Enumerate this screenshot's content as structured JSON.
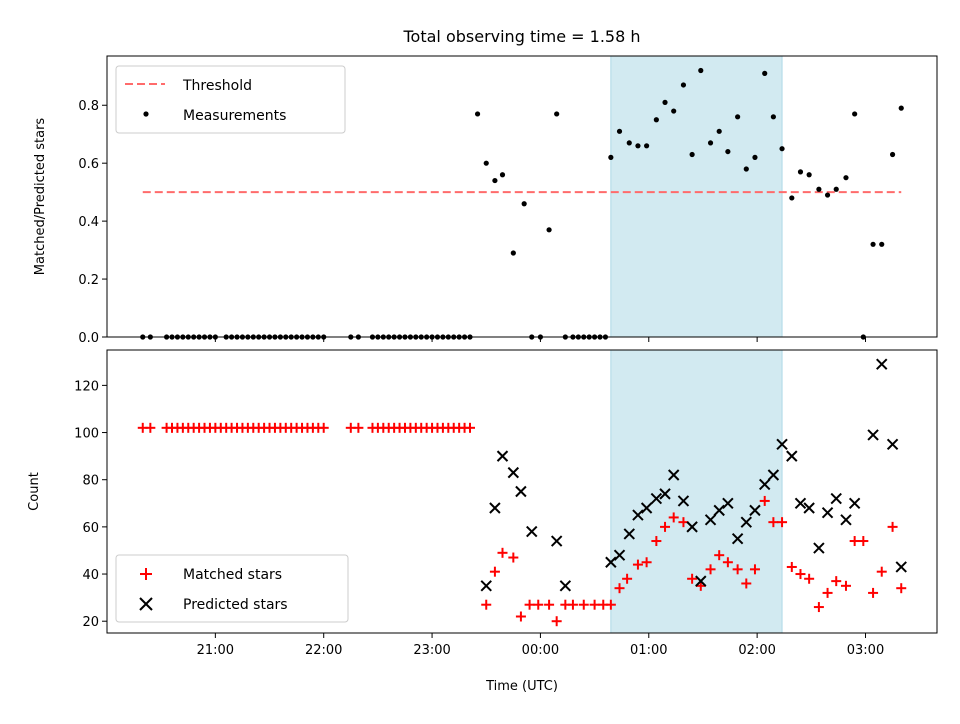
{
  "chart_data": [
    {
      "type": "scatter",
      "title": "Total observing time = 1.58 h",
      "xlabel": "",
      "ylabel": "Matched/Predicted stars",
      "x_unit": "hours UTC (values above 24 are after midnight of the next day)",
      "xlim": [
        20.0,
        27.66
      ],
      "ylim": [
        0,
        0.97
      ],
      "yticks": [
        "0.0",
        "0.2",
        "0.4",
        "0.6",
        "0.8"
      ],
      "highlight": {
        "x0": 24.65,
        "x1": 26.23,
        "color": "#add8e6"
      },
      "threshold": {
        "name": "Threshold",
        "y": 0.5,
        "x0": 20.33,
        "x1": 27.33,
        "color": "#ff6b6b"
      },
      "legend": {
        "position": "upper-left",
        "entries": [
          "Threshold",
          "Measurements"
        ]
      },
      "series": [
        {
          "name": "Measurements",
          "x": [
            20.33,
            20.4,
            20.55,
            20.6,
            20.65,
            20.7,
            20.75,
            20.8,
            20.85,
            20.9,
            20.95,
            21.0,
            21.1,
            21.15,
            21.2,
            21.25,
            21.3,
            21.35,
            21.4,
            21.45,
            21.5,
            21.55,
            21.6,
            21.65,
            21.7,
            21.75,
            21.8,
            21.85,
            21.9,
            21.95,
            22.0,
            22.25,
            22.32,
            22.45,
            22.5,
            22.55,
            22.6,
            22.65,
            22.7,
            22.75,
            22.8,
            22.85,
            22.9,
            22.95,
            23.0,
            23.05,
            23.1,
            23.15,
            23.2,
            23.25,
            23.3,
            23.35,
            23.42,
            23.5,
            23.58,
            23.65,
            23.75,
            23.85,
            23.92,
            24.0,
            24.08,
            24.15,
            24.23,
            24.3,
            24.35,
            24.4,
            24.45,
            24.5,
            24.55,
            24.6,
            24.65,
            24.73,
            24.82,
            24.9,
            24.98,
            25.07,
            25.15,
            25.23,
            25.32,
            25.4,
            25.48,
            25.57,
            25.65,
            25.73,
            25.82,
            25.9,
            25.98,
            26.07,
            26.15,
            26.23,
            26.32,
            26.4,
            26.48,
            26.57,
            26.65,
            26.73,
            26.82,
            26.9,
            26.98,
            27.07,
            27.15,
            27.25,
            27.33
          ],
          "y": [
            0,
            0,
            0,
            0,
            0,
            0,
            0,
            0,
            0,
            0,
            0,
            0,
            0,
            0,
            0,
            0,
            0,
            0,
            0,
            0,
            0,
            0,
            0,
            0,
            0,
            0,
            0,
            0,
            0,
            0,
            0,
            0,
            0,
            0,
            0,
            0,
            0,
            0,
            0,
            0,
            0,
            0,
            0,
            0,
            0,
            0,
            0,
            0,
            0,
            0,
            0,
            0,
            0.77,
            0.6,
            0.54,
            0.56,
            0.29,
            0.46,
            0,
            0,
            0.37,
            0.77,
            0,
            0,
            0,
            0,
            0,
            0,
            0,
            0,
            0.62,
            0.71,
            0.67,
            0.66,
            0.66,
            0.75,
            0.81,
            0.78,
            0.87,
            0.63,
            0.92,
            0.67,
            0.71,
            0.64,
            0.76,
            0.58,
            0.62,
            0.91,
            0.76,
            0.65,
            0.48,
            0.57,
            0.56,
            0.51,
            0.49,
            0.51,
            0.55,
            0.77,
            0,
            0.32,
            0.32,
            0.63,
            0.79
          ]
        }
      ]
    },
    {
      "type": "scatter",
      "title": "",
      "xlabel": "Time (UTC)",
      "ylabel": "Count",
      "x_unit": "hours UTC (values above 24 are after midnight of the next day)",
      "xlim": [
        20.0,
        27.66
      ],
      "ylim": [
        15,
        135
      ],
      "yticks": [
        "20",
        "40",
        "60",
        "80",
        "100",
        "120"
      ],
      "xticks": [
        "21:00",
        "22:00",
        "23:00",
        "00:00",
        "01:00",
        "02:00",
        "03:00"
      ],
      "highlight": {
        "x0": 24.65,
        "x1": 26.23,
        "color": "#add8e6"
      },
      "legend": {
        "position": "lower-left",
        "entries": [
          "Matched stars",
          "Predicted stars"
        ]
      },
      "series": [
        {
          "name": "Matched stars",
          "color": "#ff0000",
          "marker": "+",
          "x": [
            20.33,
            20.4,
            20.55,
            20.6,
            20.65,
            20.7,
            20.75,
            20.8,
            20.85,
            20.9,
            20.95,
            21.0,
            21.05,
            21.1,
            21.15,
            21.2,
            21.25,
            21.3,
            21.35,
            21.4,
            21.45,
            21.5,
            21.55,
            21.6,
            21.65,
            21.7,
            21.75,
            21.8,
            21.85,
            21.9,
            21.95,
            22.0,
            22.25,
            22.32,
            22.45,
            22.5,
            22.55,
            22.6,
            22.65,
            22.7,
            22.75,
            22.8,
            22.85,
            22.9,
            22.95,
            23.0,
            23.05,
            23.1,
            23.15,
            23.2,
            23.25,
            23.3,
            23.35,
            23.5,
            23.58,
            23.65,
            23.75,
            23.82,
            23.9,
            23.98,
            24.08,
            24.15,
            24.23,
            24.3,
            24.4,
            24.5,
            24.58,
            24.65,
            24.73,
            24.8,
            24.9,
            24.98,
            25.07,
            25.15,
            25.23,
            25.32,
            25.4,
            25.48,
            25.57,
            25.65,
            25.73,
            25.82,
            25.9,
            25.98,
            26.07,
            26.15,
            26.23,
            26.32,
            26.4,
            26.48,
            26.57,
            26.65,
            26.73,
            26.82,
            26.9,
            26.98,
            27.07,
            27.15,
            27.25,
            27.33
          ],
          "y": [
            102,
            102,
            102,
            102,
            102,
            102,
            102,
            102,
            102,
            102,
            102,
            102,
            102,
            102,
            102,
            102,
            102,
            102,
            102,
            102,
            102,
            102,
            102,
            102,
            102,
            102,
            102,
            102,
            102,
            102,
            102,
            102,
            102,
            102,
            102,
            102,
            102,
            102,
            102,
            102,
            102,
            102,
            102,
            102,
            102,
            102,
            102,
            102,
            102,
            102,
            102,
            102,
            102,
            27,
            41,
            49,
            47,
            22,
            27,
            27,
            27,
            20,
            27,
            27,
            27,
            27,
            27,
            27,
            34,
            38,
            44,
            45,
            54,
            60,
            64,
            62,
            38,
            35,
            42,
            48,
            45,
            42,
            36,
            42,
            71,
            62,
            62,
            43,
            40,
            38,
            26,
            32,
            37,
            35,
            54,
            54,
            32,
            41,
            60,
            34
          ]
        },
        {
          "name": "Predicted stars",
          "color": "#000000",
          "marker": "x",
          "x": [
            23.5,
            23.58,
            23.65,
            23.75,
            23.82,
            23.92,
            24.15,
            24.23,
            24.65,
            24.73,
            24.82,
            24.9,
            24.98,
            25.07,
            25.15,
            25.23,
            25.32,
            25.4,
            25.48,
            25.57,
            25.65,
            25.73,
            25.82,
            25.9,
            25.98,
            26.07,
            26.15,
            26.23,
            26.32,
            26.4,
            26.48,
            26.57,
            26.65,
            26.73,
            26.82,
            26.9,
            27.07,
            27.15,
            27.25,
            27.33
          ],
          "y": [
            35,
            68,
            90,
            83,
            75,
            58,
            54,
            35,
            45,
            48,
            57,
            65,
            68,
            72,
            74,
            82,
            71,
            60,
            37,
            63,
            67,
            70,
            55,
            62,
            67,
            78,
            82,
            95,
            90,
            70,
            68,
            51,
            66,
            72,
            63,
            70,
            99,
            129,
            95,
            43
          ]
        }
      ]
    }
  ]
}
